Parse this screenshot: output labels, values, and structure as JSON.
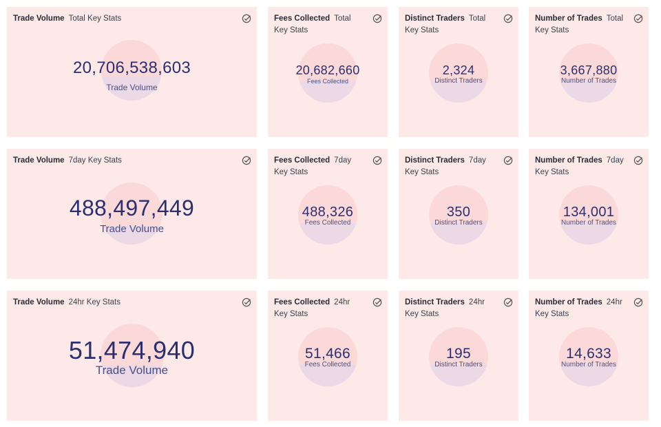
{
  "colors": {
    "card_bg": "#fde9e8",
    "value_text": "#2b2f72",
    "label_text": "#4a4e86"
  },
  "icon": "check-circle-icon",
  "rows": [
    {
      "period": "Total",
      "cards": [
        {
          "title": "Trade Volume",
          "subtitle": "Total Key Stats",
          "value": "20,706,538,603",
          "label": "Trade Volume"
        },
        {
          "title": "Fees Collected",
          "subtitle": "Total Key Stats",
          "value": "20,682,660",
          "label": "Fees Collected"
        },
        {
          "title": "Distinct Traders",
          "subtitle": "Total Key Stats",
          "value": "2,324",
          "label": "Distinct Traders"
        },
        {
          "title": "Number of Trades",
          "subtitle": "Total Key Stats",
          "value": "3,667,880",
          "label": "Number of Trades"
        }
      ]
    },
    {
      "period": "7day",
      "cards": [
        {
          "title": "Trade Volume",
          "subtitle": "7day Key Stats",
          "value": "488,497,449",
          "label": "Trade Volume"
        },
        {
          "title": "Fees Collected",
          "subtitle": "7day Key Stats",
          "value": "488,326",
          "label": "Fees Collected"
        },
        {
          "title": "Distinct Traders",
          "subtitle": "7day Key Stats",
          "value": "350",
          "label": "Distinct Traders"
        },
        {
          "title": "Number of Trades",
          "subtitle": "7day Key Stats",
          "value": "134,001",
          "label": "Number of Trades"
        }
      ]
    },
    {
      "period": "24hr",
      "cards": [
        {
          "title": "Trade Volume",
          "subtitle": "24hr Key Stats",
          "value": "51,474,940",
          "label": "Trade Volume"
        },
        {
          "title": "Fees Collected",
          "subtitle": "24hr Key Stats",
          "value": "51,466",
          "label": "Fees Collected"
        },
        {
          "title": "Distinct Traders",
          "subtitle": "24hr Key Stats",
          "value": "195",
          "label": "Distinct Traders"
        },
        {
          "title": "Number of Trades",
          "subtitle": "24hr Key Stats",
          "value": "14,633",
          "label": "Number of Trades"
        }
      ]
    }
  ]
}
